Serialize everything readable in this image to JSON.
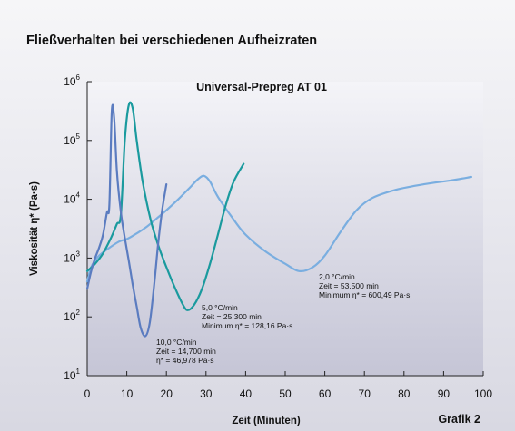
{
  "page": {
    "title": "Fließverhalten bei verschiedenen Aufheizraten",
    "figure_label": "Grafik 2"
  },
  "chart_data": {
    "type": "line",
    "title": "Universal-Prepreg AT 01",
    "xlabel": "Zeit (Minuten)",
    "ylabel": "Viskosität η* (Pa·s)",
    "y_scale": "log",
    "xlim": [
      0,
      100
    ],
    "ylim": [
      10,
      1000000
    ],
    "x_ticks": [
      0,
      10,
      20,
      30,
      40,
      50,
      60,
      70,
      80,
      90,
      100
    ],
    "y_ticks": [
      {
        "value": 10,
        "base": "10",
        "exp": "1"
      },
      {
        "value": 100,
        "base": "10",
        "exp": "2"
      },
      {
        "value": 1000,
        "base": "10",
        "exp": "3"
      },
      {
        "value": 10000,
        "base": "10",
        "exp": "4"
      },
      {
        "value": 100000,
        "base": "10",
        "exp": "5"
      },
      {
        "value": 1000000,
        "base": "10",
        "exp": "6"
      }
    ],
    "grid": false,
    "series": [
      {
        "color": "#7aaee0",
        "annotation": [
          "2,0 °C/min",
          "Zeit = 53,500 min",
          "Minimum η* = 600,49 Pa·s"
        ],
        "x": [
          0,
          1,
          2,
          3,
          5,
          8,
          10,
          12,
          15,
          18,
          20,
          23,
          26,
          28,
          29.5,
          31,
          33,
          37,
          40,
          45,
          50,
          53.5,
          57,
          60,
          64,
          68,
          72,
          78,
          85,
          92,
          97
        ],
        "y": [
          400,
          700,
          900,
          1100,
          1400,
          1900,
          2100,
          2500,
          3400,
          5000,
          6500,
          10000,
          16000,
          22000,
          25000,
          20000,
          11000,
          4500,
          2500,
          1300,
          800,
          600,
          700,
          1100,
          2800,
          6500,
          10500,
          14500,
          18000,
          21000,
          24000
        ]
      },
      {
        "color": "#1a9a9e",
        "annotation": [
          "5,0 °C/min",
          "Zeit = 25,300 min",
          "Minimum η* = 128,16 Pa·s"
        ],
        "x": [
          0,
          2,
          4,
          6,
          7.5,
          8.5,
          9.5,
          10.5,
          11.5,
          12.5,
          14,
          16,
          18,
          20,
          22,
          24,
          25.3,
          27,
          29,
          31,
          33,
          35,
          37,
          39.5
        ],
        "y": [
          600,
          800,
          1200,
          2200,
          3800,
          5500,
          100000,
          400000,
          350000,
          100000,
          20000,
          4500,
          1600,
          700,
          330,
          170,
          130,
          160,
          300,
          800,
          2500,
          8000,
          20000,
          40000
        ]
      },
      {
        "color": "#5b7cc0",
        "annotation": [
          "10,0 °C/min",
          "Zeit = 14,700 min",
          "η* = 46,978 Pa·s"
        ],
        "x": [
          0,
          1,
          2,
          3,
          4,
          5,
          5.6,
          6.2,
          6.8,
          7.5,
          8.5,
          9.5,
          10.5,
          11.5,
          12.5,
          13.5,
          14.7,
          15.8,
          17,
          18,
          19,
          20
        ],
        "y": [
          300,
          600,
          1000,
          1500,
          2500,
          6000,
          8000,
          300000,
          250000,
          30000,
          6000,
          2200,
          900,
          350,
          150,
          65,
          47,
          80,
          400,
          2000,
          7000,
          18000
        ]
      }
    ]
  }
}
